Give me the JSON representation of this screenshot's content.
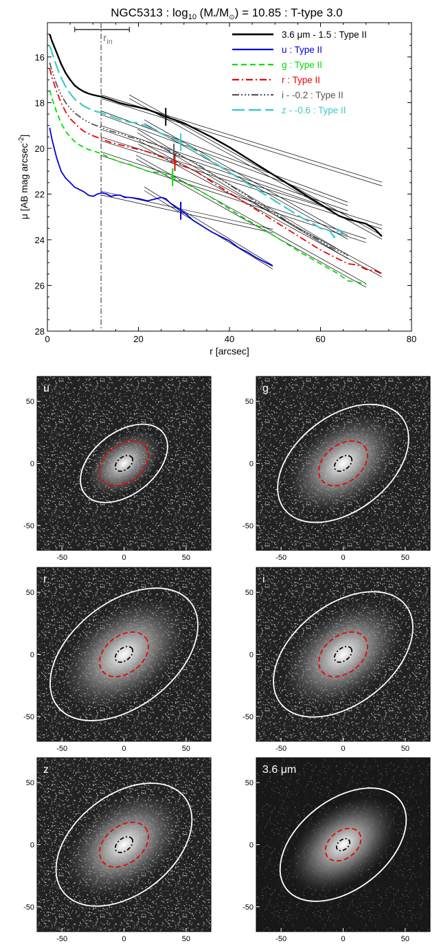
{
  "chart_data": [
    {
      "type": "line",
      "title": "NGC5313 : log₁₀ (M*/M⊙) = 10.85 : T-type 3.0",
      "title_parts": {
        "a": "NGC5313 : log",
        "sub": "10",
        "b": " (M",
        "star": "*",
        "c": "/M",
        "sun": "⊙",
        "d": ") = 10.85 : T-type 3.0"
      },
      "xlabel": "r [arcsec]",
      "ylabel": "μ [AB mag arcsec⁻²]",
      "ylabel_parts": {
        "main": "μ [AB mag arcsec",
        "sup": "-2",
        "end": "]"
      },
      "xlim": [
        0,
        80
      ],
      "ylim": [
        28,
        14.5
      ],
      "xticks": [
        0,
        20,
        40,
        60,
        80
      ],
      "yticks": [
        16,
        18,
        20,
        22,
        24,
        26,
        28
      ],
      "r_in": 11.8,
      "r_in_label": "r",
      "r_in_sub": "in",
      "r_in_bar": [
        6,
        18
      ],
      "series": [
        {
          "name": "3.6 μm - 1.5 : Type II",
          "color": "#000000",
          "dash": "",
          "width": 2.4,
          "x": [
            0.5,
            1,
            2,
            3,
            4,
            5,
            6,
            7,
            8,
            9,
            10,
            12,
            14,
            16,
            18,
            20,
            22,
            24,
            26,
            28,
            30,
            33,
            36,
            40,
            44,
            48,
            52,
            56,
            60,
            64,
            66,
            68,
            70,
            72,
            73.5
          ],
          "y": [
            15.0,
            15.3,
            15.8,
            16.3,
            16.7,
            17.0,
            17.25,
            17.4,
            17.52,
            17.6,
            17.66,
            17.75,
            17.88,
            18.02,
            18.12,
            18.2,
            18.3,
            18.45,
            18.62,
            18.75,
            18.9,
            19.2,
            19.5,
            19.95,
            20.45,
            20.95,
            21.45,
            21.95,
            22.45,
            22.95,
            23.1,
            23.2,
            23.3,
            23.55,
            23.85
          ],
          "break": 26,
          "tick_color": "#000000"
        },
        {
          "name": "u : Type II",
          "color": "#0000dd",
          "dash": "",
          "width": 1.8,
          "x": [
            0.5,
            1,
            2,
            3,
            4,
            5,
            6,
            7,
            8,
            9,
            10,
            11,
            12,
            13,
            14,
            15,
            16,
            17,
            18,
            20,
            22,
            24,
            25,
            26,
            27,
            28,
            29,
            30,
            32,
            34,
            36,
            38,
            40,
            42,
            44,
            46,
            48,
            49.5
          ],
          "y": [
            19.1,
            19.6,
            20.4,
            21.0,
            21.3,
            21.5,
            21.7,
            21.8,
            21.9,
            22.05,
            22.1,
            22.0,
            21.95,
            22.0,
            22.1,
            22.05,
            22.05,
            22.15,
            22.15,
            22.2,
            22.3,
            22.2,
            22.15,
            22.2,
            22.4,
            22.55,
            22.7,
            22.8,
            23.15,
            23.4,
            23.65,
            23.85,
            24.05,
            24.35,
            24.55,
            24.8,
            25.0,
            25.15
          ],
          "break": 29.3,
          "tick_color": "#0000dd"
        },
        {
          "name": "g : Type II",
          "color": "#00dd00",
          "dash": "8,5",
          "width": 1.8,
          "x": [
            0.5,
            1,
            2,
            3,
            4,
            5,
            6,
            7,
            8,
            9,
            10,
            12,
            14,
            16,
            18,
            20,
            22,
            24,
            26,
            28,
            30,
            33,
            36,
            40,
            44,
            48,
            52,
            56,
            60,
            64,
            66,
            68,
            70
          ],
          "y": [
            17.45,
            17.8,
            18.4,
            18.9,
            19.25,
            19.5,
            19.7,
            19.85,
            19.95,
            20.05,
            20.1,
            20.25,
            20.45,
            20.6,
            20.7,
            20.85,
            21.0,
            21.05,
            21.15,
            21.3,
            21.5,
            21.8,
            22.15,
            22.65,
            23.15,
            23.6,
            24.1,
            24.6,
            25.05,
            25.5,
            25.8,
            25.85,
            25.95
          ],
          "break": 27.5,
          "tick_color": "#00dd00"
        },
        {
          "name": "r : Type II",
          "color": "#ee0000",
          "dash": "10,4,2,4",
          "width": 1.8,
          "x": [
            0.5,
            1,
            2,
            3,
            4,
            5,
            6,
            7,
            8,
            9,
            10,
            12,
            14,
            16,
            18,
            20,
            22,
            24,
            26,
            28,
            30,
            33,
            36,
            40,
            44,
            48,
            52,
            56,
            60,
            62,
            64,
            66,
            68,
            70,
            72,
            73.5
          ],
          "y": [
            16.5,
            16.9,
            17.5,
            18.0,
            18.4,
            18.7,
            18.9,
            19.1,
            19.25,
            19.35,
            19.45,
            19.6,
            19.75,
            19.85,
            19.95,
            20.05,
            20.15,
            20.3,
            20.45,
            20.6,
            20.75,
            21.05,
            21.45,
            21.95,
            22.45,
            22.95,
            23.45,
            23.95,
            24.45,
            24.65,
            24.85,
            25.05,
            25.1,
            25.3,
            25.35,
            25.5
          ],
          "break": 28,
          "tick_color": "#ee0000"
        },
        {
          "name": "i - -0.2 : Type II",
          "color": "#555555",
          "dash": "10,3,2,3,2,3,2,3",
          "width": 1.8,
          "x": [
            0.5,
            1,
            2,
            3,
            4,
            5,
            6,
            7,
            8,
            9,
            10,
            12,
            14,
            16,
            18,
            20,
            22,
            24,
            26,
            28,
            30,
            33,
            36,
            40,
            44,
            48,
            52,
            56,
            60,
            62,
            64,
            66
          ],
          "y": [
            16.25,
            16.6,
            17.2,
            17.65,
            18.0,
            18.25,
            18.45,
            18.6,
            18.75,
            18.85,
            18.95,
            19.1,
            19.25,
            19.35,
            19.5,
            19.6,
            19.72,
            19.85,
            20.05,
            20.2,
            20.4,
            20.7,
            21.1,
            21.6,
            22.1,
            22.6,
            23.1,
            23.6,
            24.05,
            24.3,
            24.5,
            24.7
          ],
          "break": 27.8,
          "tick_color": "#555555"
        },
        {
          "name": "z - -0.6 : Type II",
          "color": "#40c8c8",
          "dash": "18,6",
          "width": 2.2,
          "x": [
            0.5,
            1,
            2,
            3,
            4,
            5,
            6,
            7,
            8,
            9,
            10,
            12,
            14,
            16,
            18,
            20,
            22,
            24,
            26,
            28,
            30,
            33,
            36,
            40,
            44,
            48,
            52,
            56,
            58,
            60,
            62,
            63,
            64,
            65,
            66
          ],
          "y": [
            15.5,
            15.8,
            16.4,
            16.9,
            17.3,
            17.6,
            17.85,
            18.0,
            18.15,
            18.25,
            18.35,
            18.45,
            18.6,
            18.75,
            18.85,
            18.9,
            19.05,
            19.25,
            19.45,
            19.6,
            19.8,
            20.15,
            20.55,
            21.05,
            21.55,
            22.05,
            22.55,
            23.05,
            23.25,
            23.5,
            23.6,
            23.9,
            23.55,
            23.8,
            23.85
          ],
          "break": 29.3,
          "tick_color": "#40c8c8"
        }
      ]
    },
    {
      "type": "image-panels",
      "xticks": [
        -50,
        0,
        50
      ],
      "yticks": [
        50,
        0,
        -50
      ],
      "ellipse_colors": {
        "outer": "#ffffff",
        "break": "#ee0000",
        "inner": "#000000"
      },
      "panels": [
        {
          "label": "u",
          "pa_deg": -38,
          "outer": [
            40,
            25
          ],
          "brk": [
            22,
            15
          ],
          "inner": [
            8,
            5
          ]
        },
        {
          "label": "g",
          "pa_deg": -38,
          "outer": [
            60,
            38
          ],
          "brk": [
            22,
            15
          ],
          "inner": [
            8,
            5
          ]
        },
        {
          "label": "r",
          "pa_deg": -38,
          "outer": [
            68,
            42
          ],
          "brk": [
            22,
            15
          ],
          "inner": [
            8,
            5
          ]
        },
        {
          "label": "i",
          "pa_deg": -38,
          "outer": [
            64,
            40
          ],
          "brk": [
            22,
            15
          ],
          "inner": [
            8,
            5
          ]
        },
        {
          "label": "z",
          "pa_deg": -38,
          "outer": [
            62,
            40
          ],
          "brk": [
            22,
            15
          ],
          "inner": [
            8,
            5
          ]
        },
        {
          "label": "3.6 μm",
          "pa_deg": -38,
          "outer": [
            58,
            36
          ],
          "brk": [
            16,
            11
          ],
          "inner": [
            6,
            4
          ]
        }
      ]
    }
  ]
}
